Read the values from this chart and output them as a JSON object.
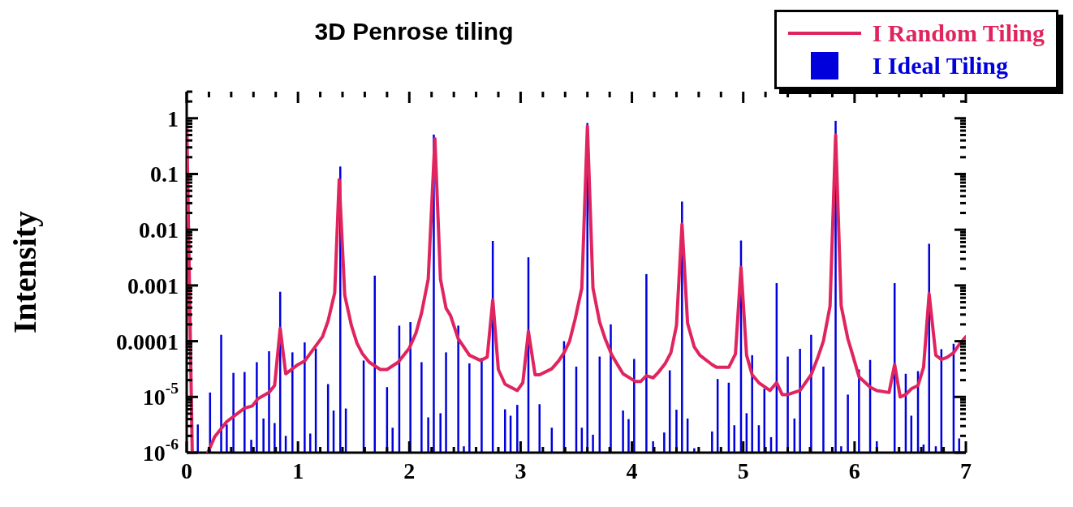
{
  "chart_data": {
    "type": "line",
    "title": "3D Penrose tiling",
    "ylabel": "Intensity",
    "log": "y",
    "legend": "top right",
    "xlim": [
      0,
      7
    ],
    "xticks": [
      0,
      {
        "value": 0.2,
        "label": null
      },
      {
        "value": 0.4,
        "label": null
      },
      {
        "value": 0.6,
        "label": null
      },
      {
        "value": 0.8,
        "label": null
      },
      1,
      {
        "value": 1.2,
        "label": null
      },
      {
        "value": 1.4,
        "label": null
      },
      {
        "value": 1.6,
        "label": null
      },
      {
        "value": 1.8,
        "label": null
      },
      2,
      {
        "value": 2.2,
        "label": null
      },
      {
        "value": 2.4,
        "label": null
      },
      {
        "value": 2.6,
        "label": null
      },
      {
        "value": 2.8,
        "label": null
      },
      3,
      {
        "value": 3.2,
        "label": null
      },
      {
        "value": 3.4,
        "label": null
      },
      {
        "value": 3.6,
        "label": null
      },
      {
        "value": 3.8,
        "label": null
      },
      4,
      {
        "value": 4.2,
        "label": null
      },
      {
        "value": 4.4,
        "label": null
      },
      {
        "value": 4.6,
        "label": null
      },
      {
        "value": 4.8,
        "label": null
      },
      5,
      {
        "value": 5.2,
        "label": null
      },
      {
        "value": 5.4,
        "label": null
      },
      {
        "value": 5.6,
        "label": null
      },
      {
        "value": 5.8,
        "label": null
      },
      6,
      {
        "value": 6.2,
        "label": null
      },
      {
        "value": 6.4,
        "label": null
      },
      {
        "value": 6.6,
        "label": null
      },
      {
        "value": 6.8,
        "label": null
      },
      7
    ],
    "ylim": [
      1e-06,
      3
    ],
    "yticks": [
      {
        "value": 1e-06,
        "label": "10$^{-6}$"
      },
      {
        "value": 2e-06,
        "label": null
      },
      {
        "value": 3e-06,
        "label": null
      },
      {
        "value": 4e-06,
        "label": null
      },
      {
        "value": 5e-06,
        "label": null
      },
      {
        "value": 6e-06,
        "label": null
      },
      {
        "value": 7e-06,
        "label": null
      },
      {
        "value": 8e-06,
        "label": null
      },
      {
        "value": 9e-06,
        "label": null
      },
      {
        "value": 1e-05,
        "label": "10$^{-5}$"
      },
      {
        "value": 2e-05,
        "label": null
      },
      {
        "value": 3e-05,
        "label": null
      },
      {
        "value": 4e-05,
        "label": null
      },
      {
        "value": 5e-05,
        "label": null
      },
      {
        "value": 6e-05,
        "label": null
      },
      {
        "value": 7e-05,
        "label": null
      },
      {
        "value": 8e-05,
        "label": null
      },
      {
        "value": 9e-05,
        "label": null
      },
      0.0001,
      {
        "value": 0.0002,
        "label": null
      },
      {
        "value": 0.0003,
        "label": null
      },
      {
        "value": 0.0004,
        "label": null
      },
      {
        "value": 0.0005,
        "label": null
      },
      {
        "value": 0.0006,
        "label": null
      },
      {
        "value": 0.0007,
        "label": null
      },
      {
        "value": 0.0008,
        "label": null
      },
      {
        "value": 0.0009,
        "label": null
      },
      0.001,
      {
        "value": 0.002,
        "label": null
      },
      {
        "value": 0.003,
        "label": null
      },
      {
        "value": 0.004,
        "label": null
      },
      {
        "value": 0.005,
        "label": null
      },
      {
        "value": 0.006,
        "label": null
      },
      {
        "value": 0.007,
        "label": null
      },
      {
        "value": 0.008,
        "label": null
      },
      {
        "value": 0.009,
        "label": null
      },
      0.01,
      {
        "value": 0.02,
        "label": null
      },
      {
        "value": 0.03,
        "label": null
      },
      {
        "value": 0.04,
        "label": null
      },
      {
        "value": 0.05,
        "label": null
      },
      {
        "value": 0.06,
        "label": null
      },
      {
        "value": 0.07,
        "label": null
      },
      {
        "value": 0.08,
        "label": null
      },
      {
        "value": 0.09,
        "label": null
      },
      0.1,
      {
        "value": 0.2,
        "label": null
      },
      {
        "value": 0.3,
        "label": null
      },
      {
        "value": 0.4,
        "label": null
      },
      {
        "value": 0.5,
        "label": null
      },
      {
        "value": 0.6,
        "label": null
      },
      {
        "value": 0.7,
        "label": null
      },
      {
        "value": 0.8,
        "label": null
      },
      {
        "value": 0.9,
        "label": null
      },
      1,
      {
        "value": 2,
        "label": null
      },
      {
        "value": 3,
        "label": null
      }
    ],
    "series": [
      {
        "name": "I Random Tiling",
        "color": "#e0245e",
        "x": [
          0,
          0.05,
          0.12,
          0.19,
          0.25,
          0.36,
          0.52,
          0.59,
          0.64,
          0.74,
          0.79,
          0.84,
          0.89,
          1.0,
          1.06,
          1.22,
          1.27,
          1.33,
          1.37,
          1.42,
          1.48,
          1.53,
          1.58,
          1.64,
          1.74,
          1.8,
          1.9,
          2.0,
          2.06,
          2.11,
          2.17,
          2.23,
          2.28,
          2.33,
          2.37,
          2.44,
          2.54,
          2.64,
          2.7,
          2.75,
          2.8,
          2.86,
          2.91,
          2.97,
          3.02,
          3.07,
          3.13,
          3.17,
          3.28,
          3.34,
          3.39,
          3.44,
          3.49,
          3.55,
          3.6,
          3.65,
          3.71,
          3.76,
          3.82,
          3.92,
          4.03,
          4.08,
          4.13,
          4.19,
          4.24,
          4.3,
          4.35,
          4.4,
          4.45,
          4.5,
          4.56,
          4.61,
          4.72,
          4.76,
          4.87,
          4.93,
          4.98,
          5.03,
          5.08,
          5.14,
          5.24,
          5.3,
          5.35,
          5.4,
          5.51,
          5.61,
          5.67,
          5.72,
          5.78,
          5.83,
          5.88,
          5.94,
          5.99,
          6.04,
          6.14,
          6.2,
          6.31,
          6.36,
          6.41,
          6.46,
          6.51,
          6.57,
          6.62,
          6.67,
          6.73,
          6.78,
          6.83,
          6.89,
          6.94,
          7.0
        ],
        "values": [
          1.0,
          1e-06,
          null,
          1e-06,
          1.9e-06,
          3.6e-06,
          6.3e-06,
          6.9e-06,
          9.3e-06,
          1.2e-05,
          1.6e-05,
          0.00017,
          2.6e-05,
          3.8e-05,
          4.4e-05,
          0.00012,
          0.00023,
          0.00074,
          0.079,
          0.00067,
          0.00019,
          9.2e-05,
          5.9e-05,
          4.2e-05,
          3.1e-05,
          3.1e-05,
          4.2e-05,
          7.5e-05,
          0.00014,
          0.00032,
          0.0013,
          0.43,
          0.0013,
          0.00039,
          0.00029,
          0.00011,
          5.6e-05,
          4.5e-05,
          5.2e-05,
          0.00055,
          3.1e-05,
          1.7e-05,
          1.5e-05,
          1.3e-05,
          1.8e-05,
          0.00015,
          2.5e-05,
          2.5e-05,
          3.2e-05,
          4.4e-05,
          6.2e-05,
          0.0001,
          0.00025,
          0.0009,
          0.72,
          0.0009,
          0.00022,
          0.00011,
          5.6e-05,
          2.6e-05,
          1.9e-05,
          1.9e-05,
          2.4e-05,
          2.2e-05,
          2.8e-05,
          4e-05,
          6.2e-05,
          0.00019,
          0.0126,
          0.00021,
          7.9e-05,
          5.6e-05,
          3.8e-05,
          3.4e-05,
          3.4e-05,
          5.9e-05,
          0.0021,
          5.6e-05,
          2.5e-05,
          1.8e-05,
          1.3e-05,
          1.8e-05,
          1.1e-05,
          1.1e-05,
          1.3e-05,
          2.5e-05,
          5.1e-05,
          0.0001,
          0.00043,
          0.5,
          0.00043,
          0.00011,
          5.1e-05,
          2.3e-05,
          1.5e-05,
          1.3e-05,
          1.2e-05,
          3.8e-05,
          1e-05,
          1.1e-05,
          1.4e-05,
          1.6e-05,
          3.4e-05,
          0.00071,
          5.6e-05,
          4.7e-05,
          5.1e-05,
          6.2e-05,
          8.7e-05,
          0.00012
        ]
      },
      {
        "name": "I Ideal Tiling",
        "type": "bar",
        "color": "#0000dd",
        "x": [
          0.1,
          0.21,
          0.31,
          0.36,
          0.42,
          0.52,
          0.58,
          0.63,
          0.69,
          0.74,
          0.79,
          0.84,
          0.89,
          0.95,
          1.06,
          1.11,
          1.16,
          1.27,
          1.32,
          1.38,
          1.43,
          1.59,
          1.69,
          1.8,
          1.85,
          1.91,
          2.01,
          2.11,
          2.17,
          2.22,
          2.28,
          2.33,
          2.44,
          2.49,
          2.54,
          2.65,
          2.75,
          2.86,
          2.91,
          2.97,
          3.07,
          3.17,
          3.28,
          3.39,
          3.5,
          3.55,
          3.6,
          3.65,
          3.71,
          3.81,
          3.92,
          3.97,
          4.02,
          4.13,
          4.19,
          4.29,
          4.34,
          4.4,
          4.45,
          4.5,
          4.56,
          4.72,
          4.77,
          4.87,
          4.92,
          4.98,
          5.03,
          5.08,
          5.14,
          5.19,
          5.25,
          5.3,
          5.4,
          5.46,
          5.51,
          5.61,
          5.72,
          5.83,
          5.88,
          5.94,
          6.04,
          6.14,
          6.2,
          6.36,
          6.46,
          6.51,
          6.57,
          6.62,
          6.67,
          6.73,
          6.78,
          6.89,
          6.94
        ],
        "values": [
          3.2e-06,
          1.2e-05,
          0.00013,
          3.2e-06,
          2.7e-05,
          2.8e-05,
          1.7e-06,
          4.2e-05,
          4.1e-06,
          6.6e-05,
          3.4e-06,
          0.00077,
          2e-06,
          6.3e-05,
          9.5e-05,
          2.2e-06,
          7.4e-05,
          1.7e-05,
          5.7e-06,
          0.136,
          6.2e-06,
          4.5e-05,
          0.0015,
          1.5e-05,
          2.8e-06,
          0.00019,
          0.00022,
          4.2e-05,
          4.3e-06,
          0.51,
          5.1e-06,
          6.3e-05,
          0.00019,
          1.3e-06,
          4e-05,
          5e-05,
          0.0063,
          6e-06,
          4.6e-06,
          7.2e-06,
          0.0032,
          7.4e-06,
          2.8e-06,
          0.0001,
          3.5e-05,
          2.8e-06,
          0.82,
          2.1e-06,
          5.3e-05,
          0.0002,
          5.7e-06,
          4e-06,
          4.8e-05,
          0.0016,
          1.6e-06,
          2.3e-06,
          3e-05,
          5.9e-06,
          0.032,
          4.1e-06,
          1.2e-06,
          2.4e-06,
          2.1e-05,
          1.8e-05,
          3.1e-06,
          0.0064,
          5.1e-06,
          5.6e-05,
          3.1e-06,
          1.4e-05,
          1.9e-06,
          0.0011,
          5.3e-05,
          4.1e-06,
          7.3e-05,
          0.00013,
          3.5e-05,
          0.9,
          1.3e-06,
          1.1e-05,
          3.1e-05,
          4.6e-05,
          1.6e-06,
          0.0011,
          2.6e-05,
          4.6e-06,
          2.9e-05,
          1.4e-06,
          0.0056,
          1.3e-06,
          7.2e-05,
          9e-05,
          1.8e-06
        ]
      }
    ]
  }
}
